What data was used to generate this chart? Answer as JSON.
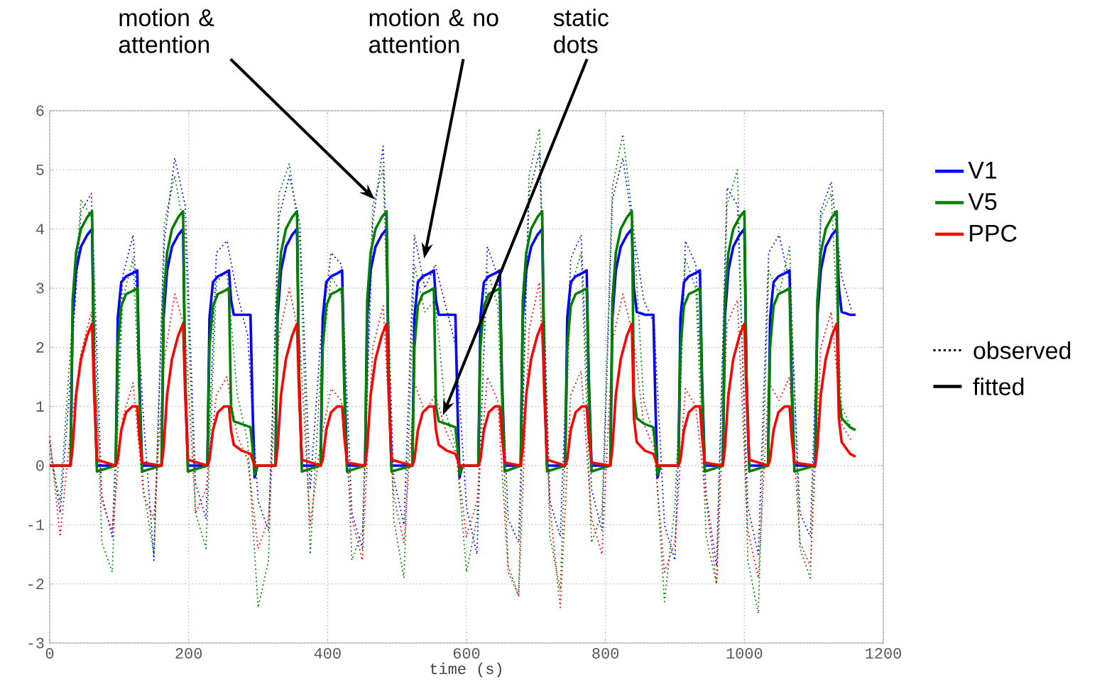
{
  "chart_data": {
    "type": "line",
    "xlabel": "time (s)",
    "xlim": [
      0,
      1200
    ],
    "xticks": [
      0,
      200,
      400,
      600,
      800,
      1000,
      1200
    ],
    "ylim": [
      -3,
      6
    ],
    "yticks": [
      -3,
      -2,
      -1,
      0,
      1,
      2,
      3,
      4,
      5,
      6
    ],
    "grid": true,
    "legend": "right",
    "annotations": [
      {
        "text": "motion & attention",
        "x": 468,
        "y": 4.5
      },
      {
        "text": "motion & no attention",
        "x": 539,
        "y": 3.5
      },
      {
        "text": "static dots",
        "x": 566,
        "y": 0.85
      },
      "observed",
      "fitted"
    ],
    "series": [
      {
        "line_style": "dotted",
        "color": "#0000ff",
        "x": [
          0,
          15,
          30,
          45,
          60,
          75,
          90,
          105,
          120,
          135,
          150,
          165,
          180,
          195,
          210,
          225,
          240,
          255,
          270,
          285,
          300,
          315,
          330,
          345,
          360,
          375,
          390,
          405,
          420,
          435,
          450,
          465,
          480,
          495,
          510,
          525,
          540,
          555,
          570,
          585,
          600,
          615,
          630,
          645,
          660,
          675,
          690,
          705,
          720,
          735,
          750,
          765,
          780,
          795,
          810,
          825,
          840,
          855,
          870,
          885,
          900,
          915,
          930,
          945,
          960,
          975,
          990,
          1005,
          1020,
          1035,
          1050,
          1065,
          1080,
          1095,
          1110,
          1125,
          1140,
          1155
        ],
        "values": [
          0.4,
          -0.8,
          1.5,
          4.3,
          4.6,
          -0.5,
          -1.2,
          3.2,
          3.9,
          0.8,
          -1.6,
          3.8,
          5.2,
          4.4,
          -0.3,
          -0.9,
          3.6,
          3.8,
          2.9,
          2.2,
          -0.6,
          -1.1,
          4.2,
          4.9,
          4.1,
          -0.4,
          2.1,
          3.6,
          3.4,
          -0.8,
          -1.4,
          4.1,
          5.4,
          -0.2,
          -1.0,
          3.9,
          3.0,
          3.4,
          2.7,
          2.0,
          -0.7,
          -1.5,
          3.7,
          3.2,
          -0.9,
          -1.3,
          4.6,
          5.3,
          -0.6,
          -1.2,
          3.5,
          3.9,
          -0.4,
          -1.1,
          4.5,
          5.2,
          4.0,
          2.8,
          2.4,
          -1.0,
          -1.6,
          3.8,
          3.4,
          -0.5,
          -1.7,
          4.7,
          4.4,
          -0.7,
          -1.5,
          3.6,
          3.9,
          3.1,
          -0.8,
          -1.2,
          4.3,
          4.8,
          3.2,
          2.6
        ]
      },
      {
        "line_style": "dotted",
        "color": "#008000",
        "x": [
          0,
          15,
          30,
          45,
          60,
          75,
          90,
          105,
          120,
          135,
          150,
          165,
          180,
          195,
          210,
          225,
          240,
          255,
          270,
          285,
          300,
          315,
          330,
          345,
          360,
          375,
          390,
          405,
          420,
          435,
          450,
          465,
          480,
          495,
          510,
          525,
          540,
          555,
          570,
          585,
          600,
          615,
          630,
          645,
          660,
          675,
          690,
          705,
          720,
          735,
          750,
          765,
          780,
          795,
          810,
          825,
          840,
          855,
          870,
          885,
          900,
          915,
          930,
          945,
          960,
          975,
          990,
          1005,
          1020,
          1035,
          1050,
          1065,
          1080,
          1095,
          1110,
          1125,
          1140,
          1155
        ],
        "values": [
          0.2,
          -0.6,
          2.0,
          4.5,
          4.2,
          -1.3,
          -1.8,
          2.8,
          3.5,
          -0.4,
          -1.5,
          4.1,
          4.9,
          3.9,
          -0.8,
          -1.4,
          3.1,
          3.3,
          1.2,
          0.4,
          -2.4,
          -1.6,
          4.6,
          5.1,
          3.8,
          -1.5,
          1.6,
          3.2,
          2.9,
          -1.6,
          -1.1,
          4.4,
          5.0,
          -0.9,
          -1.9,
          3.4,
          2.6,
          2.8,
          0.9,
          0.3,
          -1.8,
          -0.9,
          3.3,
          2.7,
          -1.7,
          -2.2,
          4.9,
          5.7,
          -1.2,
          -2.1,
          3.0,
          3.6,
          -1.3,
          -0.8,
          4.7,
          5.6,
          4.1,
          1.1,
          0.5,
          -2.3,
          -0.7,
          3.5,
          3.0,
          -1.2,
          -2.0,
          4.4,
          5.0,
          -1.6,
          -2.5,
          3.3,
          2.9,
          3.7,
          -1.4,
          -1.9,
          4.2,
          4.6,
          1.0,
          0.6
        ]
      },
      {
        "line_style": "dotted",
        "color": "#ff0000",
        "x": [
          0,
          15,
          30,
          45,
          60,
          75,
          90,
          105,
          120,
          135,
          150,
          165,
          180,
          195,
          210,
          225,
          240,
          255,
          270,
          285,
          300,
          315,
          330,
          345,
          360,
          375,
          390,
          405,
          420,
          435,
          450,
          465,
          480,
          495,
          510,
          525,
          540,
          555,
          570,
          585,
          600,
          615,
          630,
          645,
          660,
          675,
          690,
          705,
          720,
          735,
          750,
          765,
          780,
          795,
          810,
          825,
          840,
          855,
          870,
          885,
          900,
          915,
          930,
          945,
          960,
          975,
          990,
          1005,
          1020,
          1035,
          1050,
          1065,
          1080,
          1095,
          1110,
          1125,
          1140,
          1155
        ],
        "values": [
          0.5,
          -1.2,
          0.6,
          1.9,
          2.6,
          -0.6,
          -1.1,
          0.8,
          1.4,
          -0.5,
          -0.9,
          1.8,
          2.9,
          2.3,
          -0.8,
          -0.4,
          1.2,
          1.5,
          0.5,
          0.1,
          -1.4,
          -0.9,
          2.2,
          3.0,
          2.1,
          -1.0,
          0.4,
          1.3,
          1.1,
          -0.9,
          -1.6,
          2.0,
          2.7,
          -0.5,
          -1.3,
          1.4,
          0.9,
          1.2,
          0.6,
          0.2,
          -1.2,
          -0.6,
          1.5,
          1.1,
          -1.8,
          -2.2,
          2.3,
          3.1,
          -0.7,
          -2.4,
          1.2,
          1.6,
          -0.9,
          -1.5,
          2.1,
          2.9,
          2.2,
          0.7,
          0.3,
          -1.8,
          -1.3,
          1.3,
          1.0,
          -0.6,
          -2.0,
          2.4,
          2.8,
          -1.1,
          -1.9,
          1.4,
          1.1,
          1.5,
          -1.3,
          -1.7,
          2.0,
          2.6,
          0.7,
          0.4
        ]
      },
      {
        "name": "V1",
        "line_style": "solid",
        "color": "#0000ff",
        "x": [
          0,
          30,
          33,
          38,
          45,
          54,
          61,
          64,
          68,
          95,
          98,
          103,
          110,
          119,
          126,
          129,
          133,
          161,
          164,
          169,
          176,
          185,
          192,
          195,
          199,
          227,
          230,
          235,
          242,
          251,
          258,
          261,
          265,
          277,
          289,
          292,
          295,
          299,
          325,
          328,
          333,
          340,
          349,
          356,
          359,
          363,
          390,
          393,
          398,
          405,
          414,
          421,
          424,
          428,
          454,
          457,
          462,
          469,
          478,
          485,
          488,
          492,
          522,
          525,
          530,
          537,
          546,
          553,
          556,
          560,
          572,
          584,
          587,
          590,
          594,
          617,
          620,
          625,
          632,
          641,
          648,
          651,
          655,
          678,
          681,
          686,
          693,
          702,
          709,
          712,
          716,
          742,
          745,
          750,
          757,
          766,
          773,
          776,
          780,
          807,
          810,
          815,
          822,
          831,
          838,
          841,
          845,
          857,
          869,
          872,
          875,
          879,
          905,
          908,
          913,
          920,
          929,
          936,
          939,
          943,
          969,
          972,
          977,
          984,
          993,
          1000,
          1003,
          1007,
          1034,
          1037,
          1042,
          1049,
          1058,
          1065,
          1068,
          1072,
          1102,
          1105,
          1110,
          1117,
          1126,
          1133,
          1136,
          1140,
          1152,
          1160
        ],
        "values": [
          0,
          0,
          2.5,
          3.3,
          3.7,
          3.9,
          4.0,
          1.5,
          0,
          0,
          2.5,
          3.1,
          3.2,
          3.25,
          3.3,
          1.5,
          0,
          0,
          2.5,
          3.3,
          3.7,
          3.9,
          4.0,
          1.5,
          0,
          0,
          2.5,
          3.1,
          3.2,
          3.25,
          3.3,
          2.8,
          2.55,
          2.55,
          2.55,
          1.0,
          -0.2,
          0,
          0,
          2.5,
          3.3,
          3.7,
          3.9,
          4.0,
          1.5,
          0,
          0,
          2.5,
          3.1,
          3.2,
          3.25,
          3.3,
          1.5,
          0,
          0,
          2.5,
          3.3,
          3.7,
          3.9,
          4.0,
          1.5,
          0,
          0,
          2.5,
          3.1,
          3.2,
          3.25,
          3.3,
          2.8,
          2.55,
          2.55,
          2.55,
          1.0,
          -0.2,
          0,
          0,
          2.5,
          3.1,
          3.2,
          3.25,
          3.3,
          1.5,
          0,
          0,
          2.5,
          3.3,
          3.7,
          3.9,
          4.0,
          1.5,
          0,
          0,
          2.5,
          3.1,
          3.2,
          3.25,
          3.3,
          1.5,
          0,
          0,
          2.5,
          3.3,
          3.7,
          3.9,
          4.0,
          3.0,
          2.6,
          2.55,
          2.55,
          1.0,
          -0.2,
          0,
          0,
          2.5,
          3.1,
          3.2,
          3.25,
          3.3,
          1.5,
          0,
          0,
          2.5,
          3.3,
          3.7,
          3.9,
          4.0,
          1.5,
          0,
          0,
          2.5,
          3.1,
          3.2,
          3.25,
          3.3,
          1.5,
          0,
          0,
          2.5,
          3.3,
          3.7,
          3.9,
          4.0,
          3.0,
          2.6,
          2.55,
          2.55
        ]
      },
      {
        "name": "V5",
        "line_style": "solid",
        "color": "#008000",
        "x": [
          0,
          30,
          33,
          38,
          45,
          54,
          61,
          64,
          68,
          95,
          98,
          103,
          110,
          119,
          126,
          129,
          133,
          161,
          164,
          169,
          176,
          185,
          192,
          195,
          199,
          227,
          230,
          235,
          242,
          251,
          258,
          261,
          265,
          277,
          289,
          292,
          295,
          299,
          325,
          328,
          333,
          340,
          349,
          356,
          359,
          363,
          390,
          393,
          398,
          405,
          414,
          421,
          424,
          428,
          454,
          457,
          462,
          469,
          478,
          485,
          488,
          492,
          522,
          525,
          530,
          537,
          546,
          553,
          556,
          560,
          572,
          584,
          587,
          590,
          594,
          617,
          620,
          625,
          632,
          641,
          648,
          651,
          655,
          678,
          681,
          686,
          693,
          702,
          709,
          712,
          716,
          742,
          745,
          750,
          757,
          766,
          773,
          776,
          780,
          807,
          810,
          815,
          822,
          831,
          838,
          841,
          845,
          857,
          869,
          872,
          875,
          879,
          905,
          908,
          913,
          920,
          929,
          936,
          939,
          943,
          969,
          972,
          977,
          984,
          993,
          1000,
          1003,
          1007,
          1034,
          1037,
          1042,
          1049,
          1058,
          1065,
          1068,
          1072,
          1102,
          1105,
          1110,
          1117,
          1126,
          1133,
          1136,
          1140,
          1152,
          1160
        ],
        "values": [
          0,
          0,
          2.8,
          3.6,
          4.0,
          4.2,
          4.3,
          1.5,
          -0.1,
          0,
          2.0,
          2.7,
          2.9,
          2.95,
          3.0,
          1.3,
          -0.1,
          0,
          2.8,
          3.6,
          4.0,
          4.2,
          4.3,
          1.5,
          -0.1,
          0,
          2.0,
          2.7,
          2.9,
          2.95,
          3.0,
          1.0,
          0.75,
          0.7,
          0.65,
          0.3,
          -0.15,
          0,
          0,
          2.8,
          3.6,
          4.0,
          4.2,
          4.3,
          1.5,
          -0.1,
          0,
          2.0,
          2.7,
          2.9,
          2.95,
          3.0,
          1.3,
          -0.1,
          0,
          2.8,
          3.6,
          4.0,
          4.2,
          4.3,
          1.5,
          -0.1,
          0,
          2.0,
          2.7,
          2.9,
          2.95,
          3.0,
          1.0,
          0.75,
          0.7,
          0.65,
          0.3,
          -0.15,
          0,
          0,
          2.0,
          2.7,
          2.9,
          2.95,
          3.0,
          1.3,
          -0.1,
          0,
          2.8,
          3.6,
          4.0,
          4.2,
          4.3,
          1.5,
          -0.1,
          0,
          2.0,
          2.7,
          2.9,
          2.95,
          3.0,
          1.3,
          -0.1,
          0,
          2.8,
          3.6,
          4.0,
          4.2,
          4.3,
          1.2,
          0.8,
          0.7,
          0.65,
          0.3,
          -0.15,
          0,
          0,
          2.0,
          2.7,
          2.9,
          2.95,
          3.0,
          1.3,
          -0.1,
          0,
          2.8,
          3.6,
          4.0,
          4.2,
          4.3,
          1.5,
          -0.1,
          0,
          2.0,
          2.7,
          2.9,
          2.95,
          3.0,
          1.3,
          -0.1,
          0,
          2.8,
          3.6,
          4.0,
          4.2,
          4.3,
          1.2,
          0.8,
          0.65,
          0.6
        ]
      },
      {
        "name": "PPC",
        "line_style": "solid",
        "color": "#ff0000",
        "x": [
          0,
          30,
          33,
          38,
          45,
          54,
          61,
          64,
          68,
          95,
          98,
          103,
          110,
          119,
          126,
          129,
          133,
          161,
          164,
          169,
          176,
          185,
          192,
          195,
          199,
          227,
          230,
          235,
          242,
          251,
          258,
          261,
          265,
          277,
          289,
          292,
          295,
          299,
          325,
          328,
          333,
          340,
          349,
          356,
          359,
          363,
          390,
          393,
          398,
          405,
          414,
          421,
          424,
          428,
          454,
          457,
          462,
          469,
          478,
          485,
          488,
          492,
          522,
          525,
          530,
          537,
          546,
          553,
          556,
          560,
          572,
          584,
          587,
          590,
          594,
          617,
          620,
          625,
          632,
          641,
          648,
          651,
          655,
          678,
          681,
          686,
          693,
          702,
          709,
          712,
          716,
          742,
          745,
          750,
          757,
          766,
          773,
          776,
          780,
          807,
          810,
          815,
          822,
          831,
          838,
          841,
          845,
          857,
          869,
          872,
          875,
          879,
          905,
          908,
          913,
          920,
          929,
          936,
          939,
          943,
          969,
          972,
          977,
          984,
          993,
          1000,
          1003,
          1007,
          1034,
          1037,
          1042,
          1049,
          1058,
          1065,
          1068,
          1072,
          1102,
          1105,
          1110,
          1117,
          1126,
          1133,
          1136,
          1140,
          1152,
          1160
        ],
        "values": [
          0,
          0,
          0.3,
          1.2,
          1.8,
          2.2,
          2.4,
          1.2,
          0.1,
          0,
          0.1,
          0.6,
          0.9,
          1.0,
          1.0,
          0.5,
          0.05,
          0,
          0.3,
          1.2,
          1.8,
          2.2,
          2.4,
          1.2,
          0.1,
          0,
          0.1,
          0.6,
          0.9,
          1.0,
          1.0,
          0.6,
          0.35,
          0.25,
          0.2,
          0.1,
          0,
          0,
          0,
          0.3,
          1.2,
          1.8,
          2.2,
          2.4,
          1.2,
          0.1,
          0,
          0.1,
          0.6,
          0.9,
          1.0,
          1.0,
          0.5,
          0.05,
          0,
          0.3,
          1.2,
          1.8,
          2.2,
          2.4,
          1.2,
          0.1,
          0,
          0.1,
          0.6,
          0.9,
          1.0,
          1.0,
          0.6,
          0.35,
          0.25,
          0.2,
          0.1,
          0,
          0,
          0,
          0.1,
          0.6,
          0.9,
          1.0,
          1.0,
          0.5,
          0.05,
          0,
          0.3,
          1.2,
          1.8,
          2.2,
          2.4,
          1.2,
          0.1,
          0,
          0.1,
          0.6,
          0.9,
          1.0,
          1.0,
          0.5,
          0.05,
          0,
          0.3,
          1.2,
          1.8,
          2.2,
          2.4,
          0.8,
          0.4,
          0.25,
          0.2,
          0.1,
          0,
          0,
          0,
          0.1,
          0.6,
          0.9,
          1.0,
          1.0,
          0.5,
          0.05,
          0,
          0.3,
          1.2,
          1.8,
          2.2,
          2.4,
          1.2,
          0.1,
          0,
          0.1,
          0.6,
          0.9,
          1.0,
          1.0,
          0.5,
          0.05,
          0,
          0.3,
          1.2,
          1.8,
          2.2,
          2.4,
          0.8,
          0.4,
          0.2,
          0.15
        ]
      }
    ]
  }
}
